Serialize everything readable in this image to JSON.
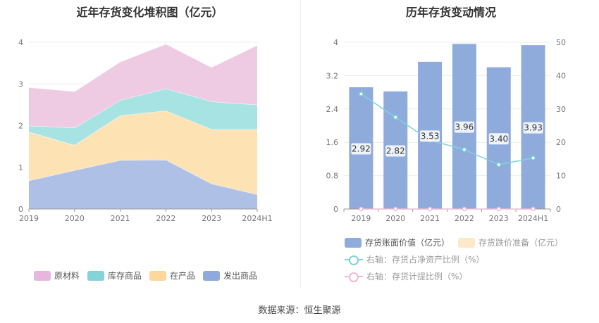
{
  "source": "数据来源：恒生聚源",
  "chart_data": [
    {
      "type": "area",
      "stacked": true,
      "title": "近年存货变化堆积图（亿元）",
      "categories": [
        "2019",
        "2020",
        "2021",
        "2022",
        "2023",
        "2024H1"
      ],
      "y_ticks": [
        "0",
        "1",
        "2",
        "3",
        "4"
      ],
      "ylim": [
        0,
        4
      ],
      "grid": true,
      "legend_position": "bottom",
      "series": [
        {
          "name": "发出商品",
          "color": "#aec0e6",
          "values": [
            0.68,
            0.93,
            1.17,
            1.18,
            0.61,
            0.35
          ]
        },
        {
          "name": "在产品",
          "color": "#fde2b4",
          "values": [
            1.17,
            0.6,
            1.07,
            1.18,
            1.3,
            1.56
          ]
        },
        {
          "name": "库存商品",
          "color": "#a8e3e4",
          "values": [
            0.15,
            0.42,
            0.37,
            0.53,
            0.67,
            0.59
          ]
        },
        {
          "name": "原材料",
          "color": "#efcbe3",
          "values": [
            0.92,
            0.87,
            0.92,
            1.07,
            0.82,
            1.43
          ]
        }
      ],
      "legend": [
        {
          "name": "原材料",
          "color": "#e7b6dc"
        },
        {
          "name": "库存商品",
          "color": "#83d3d9"
        },
        {
          "name": "在产品",
          "color": "#fdd79e"
        },
        {
          "name": "发出商品",
          "color": "#8ea9dc"
        }
      ]
    },
    {
      "type": "bar",
      "title": "历年存货变动情况",
      "categories": [
        "2019",
        "2020",
        "2021",
        "2022",
        "2023",
        "2024H1"
      ],
      "y_left_ticks": [
        "0",
        "0.8",
        "1.6",
        "2.4",
        "3.2",
        "4"
      ],
      "y_left_lim": [
        0,
        4
      ],
      "y_right_ticks": [
        "0",
        "10",
        "20",
        "30",
        "40",
        "50"
      ],
      "y_right_lim": [
        0,
        50
      ],
      "grid": true,
      "legend_position": "bottom",
      "series": [
        {
          "name": "存货账面价值（亿元）",
          "axis": "left",
          "kind": "bar",
          "color": "#8fabdb",
          "values": [
            2.92,
            2.82,
            3.53,
            3.96,
            3.4,
            3.93
          ],
          "labels": [
            "2.92",
            "2.82",
            "3.53",
            "3.96",
            "3.40",
            "3.93"
          ]
        },
        {
          "name": "存货跌价准备（亿元）",
          "axis": "left",
          "kind": "bar",
          "color": "#fde9c8",
          "values": [
            0,
            0,
            0,
            0,
            0,
            0
          ]
        },
        {
          "name": "右轴：存货占净资产比例（%）",
          "axis": "right",
          "kind": "line",
          "color": "#7ed3dc",
          "values": [
            34.5,
            27.5,
            20.6,
            17.8,
            13.3,
            15.3
          ]
        },
        {
          "name": "右轴：存货计提比例（%）",
          "axis": "right",
          "kind": "line",
          "color": "#f0b8d4",
          "values": [
            0,
            0,
            0,
            0,
            0,
            0
          ]
        }
      ]
    }
  ]
}
